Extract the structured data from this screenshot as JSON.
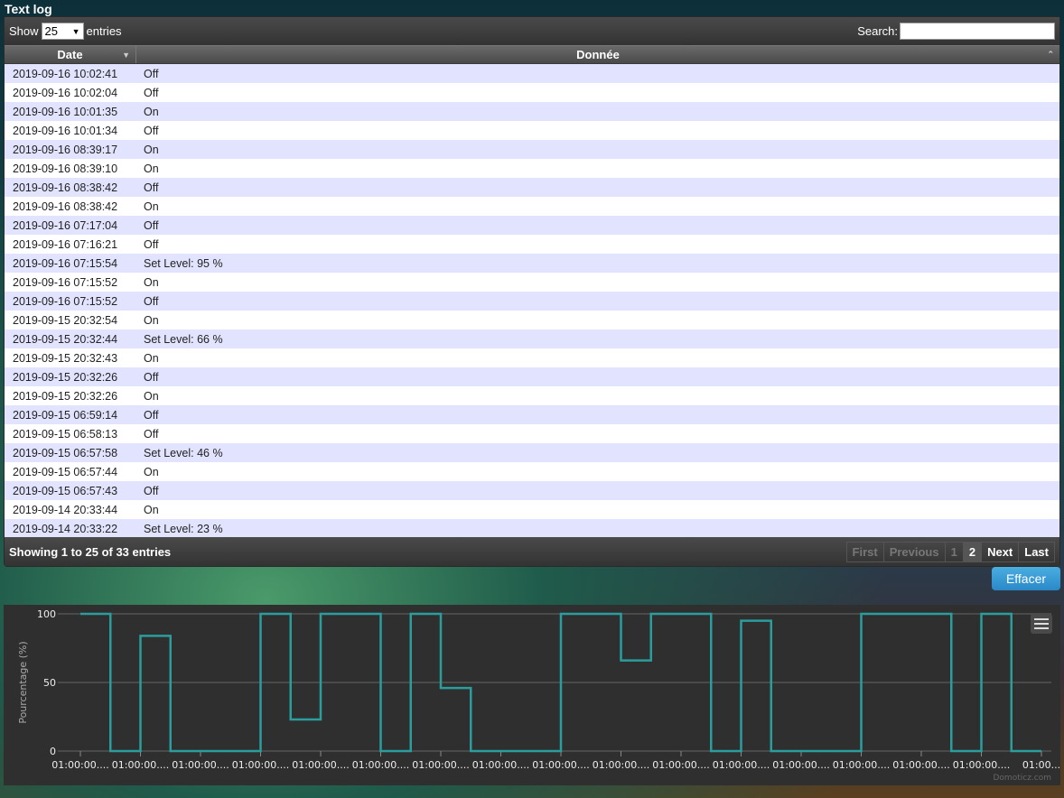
{
  "title": "Text log",
  "controls": {
    "show": "Show",
    "page_size": "25",
    "entries": "entries",
    "search_label": "Search:",
    "search_value": ""
  },
  "columns": [
    "Date",
    "Donnée"
  ],
  "rows": [
    [
      "2019-09-16 10:02:41",
      "Off"
    ],
    [
      "2019-09-16 10:02:04",
      "Off"
    ],
    [
      "2019-09-16 10:01:35",
      "On"
    ],
    [
      "2019-09-16 10:01:34",
      "Off"
    ],
    [
      "2019-09-16 08:39:17",
      "On"
    ],
    [
      "2019-09-16 08:39:10",
      "On"
    ],
    [
      "2019-09-16 08:38:42",
      "Off"
    ],
    [
      "2019-09-16 08:38:42",
      "On"
    ],
    [
      "2019-09-16 07:17:04",
      "Off"
    ],
    [
      "2019-09-16 07:16:21",
      "Off"
    ],
    [
      "2019-09-16 07:15:54",
      "Set Level: 95 %"
    ],
    [
      "2019-09-16 07:15:52",
      "On"
    ],
    [
      "2019-09-16 07:15:52",
      "Off"
    ],
    [
      "2019-09-15 20:32:54",
      "On"
    ],
    [
      "2019-09-15 20:32:44",
      "Set Level: 66 %"
    ],
    [
      "2019-09-15 20:32:43",
      "On"
    ],
    [
      "2019-09-15 20:32:26",
      "Off"
    ],
    [
      "2019-09-15 20:32:26",
      "On"
    ],
    [
      "2019-09-15 06:59:14",
      "Off"
    ],
    [
      "2019-09-15 06:58:13",
      "Off"
    ],
    [
      "2019-09-15 06:57:58",
      "Set Level: 46 %"
    ],
    [
      "2019-09-15 06:57:44",
      "On"
    ],
    [
      "2019-09-15 06:57:43",
      "Off"
    ],
    [
      "2019-09-14 20:33:44",
      "On"
    ],
    [
      "2019-09-14 20:33:22",
      "Set Level: 23 %"
    ]
  ],
  "footer": {
    "info": "Showing 1 to 25 of 33 entries",
    "first": "First",
    "previous": "Previous",
    "page1": "1",
    "page2": "2",
    "next": "Next",
    "last": "Last"
  },
  "clear_button": "Effacer",
  "chart_data": {
    "type": "line",
    "step": true,
    "ylabel": "Pourcentage (%)",
    "ylim": [
      0,
      100
    ],
    "yticks": [
      "0",
      "50",
      "100"
    ],
    "grid": true,
    "xtick_labels": [
      "01:00:00....",
      "01:00:00....",
      "01:00:00....",
      "01:00:00....",
      "01:00:00....",
      "01:00:00....",
      "01:00:00....",
      "01:00:00....",
      "01:00:00....",
      "01:00:00....",
      "01:00:00....",
      "01:00:00....",
      "01:00:00....",
      "01:00:00....",
      "01:00:00....",
      "01:00:00....",
      "01:00..."
    ],
    "values": [
      100,
      0,
      84,
      0,
      0,
      0,
      100,
      23,
      100,
      100,
      0,
      100,
      46,
      0,
      0,
      0,
      100,
      100,
      66,
      100,
      100,
      0,
      95,
      0,
      0,
      0,
      100,
      100,
      100,
      0,
      100,
      0
    ],
    "color": "#2a9d9d",
    "credits": "Domoticz.com"
  }
}
